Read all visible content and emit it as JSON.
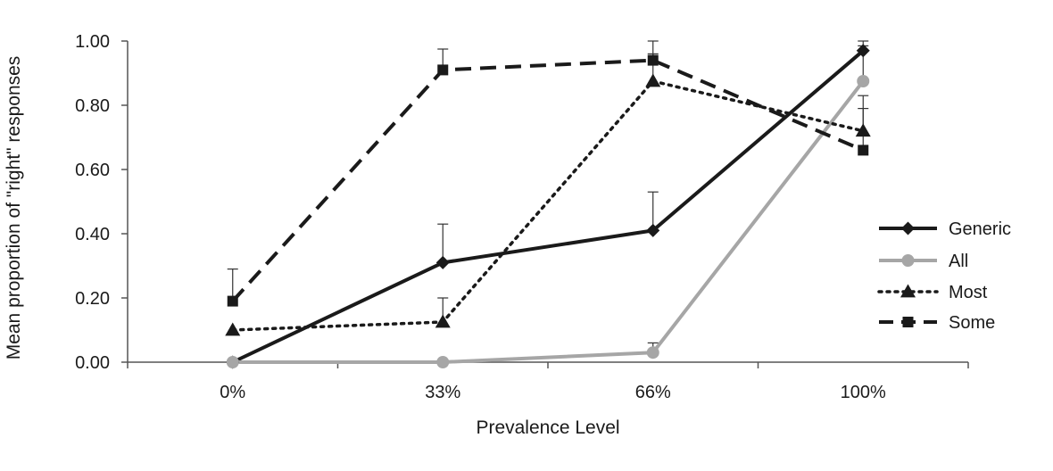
{
  "chart_data": {
    "type": "line",
    "title": "",
    "xlabel": "Prevalence Level",
    "ylabel": "Mean proportion of \"right\" responses",
    "categories": [
      "0%",
      "33%",
      "66%",
      "100%"
    ],
    "ylim": [
      0,
      1
    ],
    "y_ticks": [
      "0.00",
      "0.20",
      "0.40",
      "0.60",
      "0.80",
      "1.00"
    ],
    "grid": false,
    "legend_position": "right",
    "series": [
      {
        "name": "Generic",
        "values": [
          0.0,
          0.31,
          0.41,
          0.97
        ],
        "error_upper": [
          0.0,
          0.43,
          0.53,
          1.0
        ],
        "color": "#1a1a1a",
        "line_style": "solid",
        "marker": "diamond"
      },
      {
        "name": "All",
        "values": [
          0.0,
          0.0,
          0.03,
          0.875
        ],
        "error_upper": [
          0.0,
          0.0,
          0.06,
          0.985
        ],
        "color": "#a6a6a6",
        "line_style": "solid",
        "marker": "circle"
      },
      {
        "name": "Most",
        "values": [
          0.1,
          0.125,
          0.875,
          0.72
        ],
        "error_upper": [
          0.1,
          0.2,
          0.96,
          0.83
        ],
        "color": "#1a1a1a",
        "line_style": "dotted",
        "marker": "triangle"
      },
      {
        "name": "Some",
        "values": [
          0.19,
          0.91,
          0.94,
          0.66
        ],
        "error_upper": [
          0.29,
          0.975,
          1.0,
          0.79
        ],
        "color": "#1a1a1a",
        "line_style": "dashed",
        "marker": "square"
      }
    ]
  }
}
